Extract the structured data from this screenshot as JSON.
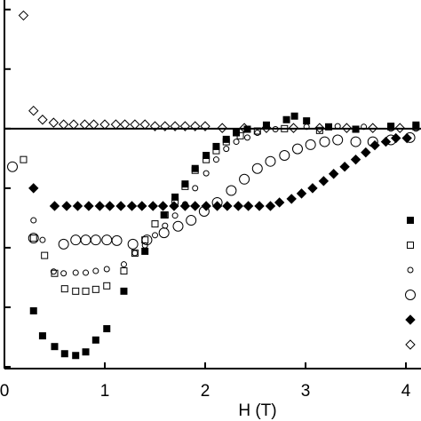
{
  "chart_data": {
    "type": "scatter",
    "x_label": "H (T)",
    "xlim": [
      -0.044,
      4.15
    ],
    "xticks": [
      0,
      1,
      2,
      3,
      4
    ],
    "ylim": [
      -4.03,
      2.16
    ],
    "yticks": [
      -4,
      -3,
      -2,
      -1,
      0,
      1,
      2
    ],
    "hline": 0,
    "color": "#000000",
    "series": [
      {
        "marker": "square",
        "filled": true,
        "x": [
          0.29,
          0.38,
          0.5,
          0.6,
          0.71,
          0.81,
          0.91,
          1.02,
          1.19,
          1.4,
          1.59,
          1.7,
          1.8,
          1.9,
          2.01,
          2.11,
          2.21,
          2.31,
          2.42,
          2.61,
          2.81,
          2.89,
          3.01,
          3.23,
          3.5,
          3.85,
          4.1
        ],
        "values": [
          -3.06,
          -3.48,
          -3.66,
          -3.78,
          -3.81,
          -3.75,
          -3.55,
          -3.36,
          -2.73,
          -2.06,
          -1.45,
          -1.15,
          -0.93,
          -0.67,
          -0.45,
          -0.3,
          -0.18,
          -0.07,
          -0.01,
          0.06,
          0.15,
          0.21,
          0.13,
          0.03,
          -0.01,
          0.04,
          0.06
        ]
      },
      {
        "marker": "square",
        "filled": false,
        "x": [
          0.19,
          0.29,
          0.4,
          0.5,
          0.6,
          0.71,
          0.81,
          0.91,
          1.02,
          1.19,
          1.3,
          1.4,
          1.5,
          1.6,
          1.7,
          1.8,
          1.9,
          2.01,
          2.11,
          2.21,
          2.35,
          2.52,
          2.79,
          3.14,
          3.5,
          3.85,
          4.1
        ],
        "values": [
          -0.52,
          -1.84,
          -2.13,
          -2.43,
          -2.69,
          -2.73,
          -2.73,
          -2.7,
          -2.64,
          -2.39,
          -2.09,
          -1.87,
          -1.6,
          -1.45,
          -1.22,
          -0.97,
          -0.7,
          -0.52,
          -0.37,
          -0.22,
          -0.12,
          -0.04,
          0,
          -0.03,
          -0.01,
          0.03,
          0.03
        ]
      },
      {
        "marker": "circle-small",
        "filled": false,
        "x": [
          0.29,
          0.38,
          0.49,
          0.59,
          0.71,
          0.81,
          0.91,
          1.02,
          1.19,
          1.3,
          1.4,
          1.5,
          1.6,
          1.7,
          1.8,
          1.9,
          2.01,
          2.11,
          2.21,
          2.31,
          2.42,
          2.52,
          2.7,
          3.01,
          3.32,
          3.58,
          3.85,
          4.1
        ],
        "values": [
          -1.54,
          -1.87,
          -2.4,
          -2.43,
          -2.42,
          -2.42,
          -2.39,
          -2.36,
          -2.28,
          -2.09,
          -1.96,
          -1.79,
          -1.63,
          -1.46,
          -1.27,
          -1.0,
          -0.75,
          -0.52,
          -0.34,
          -0.22,
          -0.15,
          -0.07,
          -0.01,
          0.03,
          0.04,
          0.03,
          0,
          0
        ]
      },
      {
        "marker": "circle-large",
        "filled": false,
        "x": [
          0.08,
          0.29,
          0.59,
          0.71,
          0.81,
          0.91,
          1.02,
          1.12,
          1.28,
          1.42,
          1.59,
          1.73,
          1.86,
          1.99,
          2.12,
          2.26,
          2.39,
          2.52,
          2.65,
          2.79,
          2.92,
          3.05,
          3.19,
          3.32,
          3.5,
          3.67,
          3.85,
          4.04
        ],
        "values": [
          -0.64,
          -1.84,
          -1.94,
          -1.87,
          -1.87,
          -1.87,
          -1.87,
          -1.88,
          -1.94,
          -1.87,
          -1.75,
          -1.64,
          -1.54,
          -1.39,
          -1.24,
          -1.04,
          -0.85,
          -0.67,
          -0.55,
          -0.45,
          -0.34,
          -0.27,
          -0.22,
          -0.19,
          -0.22,
          -0.22,
          -0.19,
          -0.15
        ]
      },
      {
        "marker": "diamond",
        "filled": true,
        "x": [
          0.29,
          0.5,
          0.62,
          0.73,
          0.84,
          0.95,
          1.05,
          1.16,
          1.27,
          1.37,
          1.48,
          1.58,
          1.69,
          1.8,
          1.9,
          2.01,
          2.12,
          2.22,
          2.33,
          2.43,
          2.54,
          2.65,
          2.74,
          2.86,
          2.96,
          3.07,
          3.18,
          3.28,
          3.39,
          3.5,
          3.6,
          3.69,
          3.8,
          3.9,
          4.01
        ],
        "values": [
          -1.0,
          -1.3,
          -1.3,
          -1.3,
          -1.3,
          -1.3,
          -1.3,
          -1.3,
          -1.3,
          -1.3,
          -1.3,
          -1.3,
          -1.3,
          -1.3,
          -1.3,
          -1.3,
          -1.3,
          -1.3,
          -1.3,
          -1.3,
          -1.3,
          -1.3,
          -1.24,
          -1.18,
          -1.09,
          -1.0,
          -0.88,
          -0.76,
          -0.64,
          -0.52,
          -0.4,
          -0.28,
          -0.22,
          -0.16,
          -0.16
        ]
      },
      {
        "marker": "diamond",
        "filled": false,
        "x": [
          0.19,
          0.29,
          0.38,
          0.49,
          0.59,
          0.69,
          0.8,
          0.89,
          1.0,
          1.11,
          1.2,
          1.3,
          1.4,
          1.5,
          1.6,
          1.7,
          1.8,
          1.9,
          2.0,
          2.17,
          2.39,
          2.61,
          2.88,
          3.14,
          3.41,
          3.67,
          3.94
        ],
        "values": [
          1.9,
          0.3,
          0.15,
          0.1,
          0.07,
          0.07,
          0.07,
          0.07,
          0.07,
          0.07,
          0.07,
          0.07,
          0.07,
          0.04,
          0.04,
          0.04,
          0.04,
          0.04,
          0.04,
          0.01,
          0.01,
          0.01,
          0.01,
          0.01,
          0.01,
          0.01,
          0.01
        ]
      }
    ]
  }
}
